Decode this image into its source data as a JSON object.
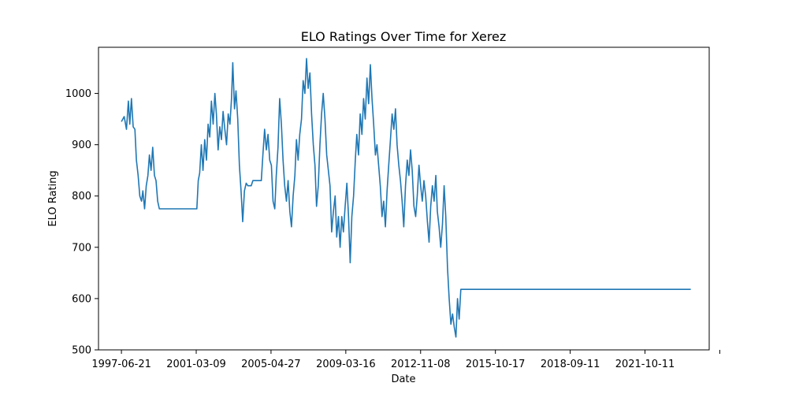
{
  "chart_data": {
    "type": "line",
    "title": "ELO Ratings Over Time for Xerez",
    "xlabel": "Date",
    "ylabel": "ELO Rating",
    "x_ticks": [
      "1997-06-21",
      "2001-03-09",
      "2005-04-27",
      "2009-03-16",
      "2012-11-08",
      "2015-10-17",
      "2018-09-11",
      "2021-10-11",
      ""
    ],
    "y_ticks": [
      "500",
      "600",
      "700",
      "800",
      "900",
      "1000"
    ],
    "ylim": [
      500,
      1090
    ],
    "xlim": [
      "1996-05-01",
      "2026-09-01"
    ],
    "grid": false,
    "legend": "none",
    "series": [
      {
        "color": "#1f77b4",
        "points": [
          [
            "1997-06-21",
            945
          ],
          [
            "1997-08-10",
            955
          ],
          [
            "1997-09-20",
            930
          ],
          [
            "1997-10-25",
            985
          ],
          [
            "1997-11-20",
            940
          ],
          [
            "1997-12-20",
            990
          ],
          [
            "1998-01-20",
            935
          ],
          [
            "1998-02-20",
            930
          ],
          [
            "1998-03-20",
            870
          ],
          [
            "1998-04-20",
            840
          ],
          [
            "1998-05-20",
            800
          ],
          [
            "1998-06-20",
            790
          ],
          [
            "1998-07-15",
            810
          ],
          [
            "1998-08-15",
            775
          ],
          [
            "1998-09-15",
            820
          ],
          [
            "1998-10-15",
            840
          ],
          [
            "1998-11-10",
            880
          ],
          [
            "1998-12-10",
            850
          ],
          [
            "1999-01-10",
            895
          ],
          [
            "1999-02-10",
            840
          ],
          [
            "1999-03-10",
            830
          ],
          [
            "1999-04-10",
            790
          ],
          [
            "1999-05-10",
            775
          ],
          [
            "2000-12-01",
            775
          ],
          [
            "2001-03-20",
            775
          ],
          [
            "2001-04-15",
            830
          ],
          [
            "2001-05-10",
            845
          ],
          [
            "2001-06-10",
            900
          ],
          [
            "2001-07-10",
            850
          ],
          [
            "2001-08-10",
            910
          ],
          [
            "2001-09-10",
            870
          ],
          [
            "2001-10-10",
            940
          ],
          [
            "2001-11-10",
            915
          ],
          [
            "2001-12-10",
            985
          ],
          [
            "2002-01-10",
            940
          ],
          [
            "2002-02-10",
            1000
          ],
          [
            "2002-03-10",
            960
          ],
          [
            "2002-04-10",
            890
          ],
          [
            "2002-05-10",
            935
          ],
          [
            "2002-06-10",
            910
          ],
          [
            "2002-07-10",
            965
          ],
          [
            "2002-08-10",
            930
          ],
          [
            "2002-09-10",
            900
          ],
          [
            "2002-10-10",
            960
          ],
          [
            "2002-11-10",
            940
          ],
          [
            "2002-12-10",
            990
          ],
          [
            "2003-01-01",
            1060
          ],
          [
            "2003-02-01",
            970
          ],
          [
            "2003-03-01",
            1005
          ],
          [
            "2003-04-01",
            950
          ],
          [
            "2003-05-01",
            860
          ],
          [
            "2003-06-01",
            810
          ],
          [
            "2003-07-01",
            750
          ],
          [
            "2003-08-01",
            810
          ],
          [
            "2003-09-01",
            825
          ],
          [
            "2003-10-01",
            820
          ],
          [
            "2003-12-01",
            820
          ],
          [
            "2004-01-01",
            830
          ],
          [
            "2004-06-01",
            830
          ],
          [
            "2004-07-01",
            880
          ],
          [
            "2004-08-01",
            930
          ],
          [
            "2004-09-01",
            890
          ],
          [
            "2004-10-01",
            920
          ],
          [
            "2004-11-01",
            870
          ],
          [
            "2004-12-01",
            860
          ],
          [
            "2005-01-01",
            790
          ],
          [
            "2005-02-01",
            775
          ],
          [
            "2005-03-01",
            840
          ],
          [
            "2005-04-01",
            895
          ],
          [
            "2005-05-01",
            990
          ],
          [
            "2005-06-01",
            940
          ],
          [
            "2005-07-01",
            870
          ],
          [
            "2005-08-01",
            820
          ],
          [
            "2005-09-01",
            790
          ],
          [
            "2005-10-01",
            830
          ],
          [
            "2005-11-01",
            770
          ],
          [
            "2005-12-01",
            740
          ],
          [
            "2006-01-01",
            800
          ],
          [
            "2006-02-01",
            840
          ],
          [
            "2006-03-01",
            910
          ],
          [
            "2006-04-01",
            870
          ],
          [
            "2006-05-01",
            920
          ],
          [
            "2006-06-01",
            950
          ],
          [
            "2006-07-01",
            1025
          ],
          [
            "2006-08-01",
            1000
          ],
          [
            "2006-09-01",
            1068
          ],
          [
            "2006-10-01",
            1010
          ],
          [
            "2006-11-01",
            1040
          ],
          [
            "2006-12-01",
            960
          ],
          [
            "2007-01-01",
            900
          ],
          [
            "2007-02-01",
            860
          ],
          [
            "2007-03-01",
            780
          ],
          [
            "2007-04-01",
            820
          ],
          [
            "2007-05-01",
            900
          ],
          [
            "2007-06-01",
            960
          ],
          [
            "2007-07-01",
            1000
          ],
          [
            "2007-08-01",
            950
          ],
          [
            "2007-09-01",
            880
          ],
          [
            "2007-10-01",
            850
          ],
          [
            "2007-11-01",
            820
          ],
          [
            "2007-12-01",
            730
          ],
          [
            "2008-01-01",
            770
          ],
          [
            "2008-02-01",
            800
          ],
          [
            "2008-03-01",
            720
          ],
          [
            "2008-04-01",
            760
          ],
          [
            "2008-05-01",
            700
          ],
          [
            "2008-06-01",
            760
          ],
          [
            "2008-07-01",
            730
          ],
          [
            "2008-08-01",
            780
          ],
          [
            "2008-09-01",
            825
          ],
          [
            "2008-10-01",
            760
          ],
          [
            "2008-11-01",
            670
          ],
          [
            "2008-12-01",
            760
          ],
          [
            "2009-01-01",
            800
          ],
          [
            "2009-02-01",
            870
          ],
          [
            "2009-03-01",
            920
          ],
          [
            "2009-04-01",
            880
          ],
          [
            "2009-05-01",
            960
          ],
          [
            "2009-06-01",
            920
          ],
          [
            "2009-07-01",
            990
          ],
          [
            "2009-08-01",
            950
          ],
          [
            "2009-09-01",
            1030
          ],
          [
            "2009-10-01",
            980
          ],
          [
            "2009-11-01",
            1056
          ],
          [
            "2009-12-01",
            990
          ],
          [
            "2010-01-01",
            940
          ],
          [
            "2010-02-01",
            880
          ],
          [
            "2010-03-01",
            900
          ],
          [
            "2010-04-01",
            860
          ],
          [
            "2010-05-01",
            820
          ],
          [
            "2010-06-01",
            760
          ],
          [
            "2010-07-01",
            790
          ],
          [
            "2010-08-01",
            740
          ],
          [
            "2010-09-01",
            810
          ],
          [
            "2010-10-01",
            860
          ],
          [
            "2010-11-01",
            910
          ],
          [
            "2010-12-01",
            960
          ],
          [
            "2011-01-01",
            930
          ],
          [
            "2011-02-01",
            970
          ],
          [
            "2011-03-01",
            900
          ],
          [
            "2011-04-01",
            860
          ],
          [
            "2011-05-01",
            830
          ],
          [
            "2011-06-01",
            790
          ],
          [
            "2011-07-01",
            740
          ],
          [
            "2011-08-01",
            820
          ],
          [
            "2011-09-01",
            870
          ],
          [
            "2011-10-01",
            840
          ],
          [
            "2011-11-01",
            890
          ],
          [
            "2011-12-01",
            850
          ],
          [
            "2012-01-01",
            780
          ],
          [
            "2012-02-01",
            760
          ],
          [
            "2012-03-01",
            800
          ],
          [
            "2012-04-01",
            860
          ],
          [
            "2012-05-01",
            820
          ],
          [
            "2012-06-01",
            790
          ],
          [
            "2012-07-01",
            830
          ],
          [
            "2012-08-01",
            800
          ],
          [
            "2012-09-01",
            750
          ],
          [
            "2012-10-01",
            710
          ],
          [
            "2012-11-01",
            780
          ],
          [
            "2012-12-01",
            820
          ],
          [
            "2013-01-01",
            790
          ],
          [
            "2013-02-01",
            840
          ],
          [
            "2013-03-01",
            770
          ],
          [
            "2013-04-01",
            740
          ],
          [
            "2013-05-01",
            700
          ],
          [
            "2013-06-01",
            745
          ],
          [
            "2013-07-01",
            820
          ],
          [
            "2013-08-01",
            760
          ],
          [
            "2013-09-01",
            660
          ],
          [
            "2013-10-01",
            600
          ],
          [
            "2013-11-01",
            550
          ],
          [
            "2013-12-01",
            570
          ],
          [
            "2014-01-01",
            545
          ],
          [
            "2014-02-01",
            525
          ],
          [
            "2014-03-01",
            600
          ],
          [
            "2014-04-01",
            560
          ],
          [
            "2014-05-01",
            618
          ],
          [
            "2014-06-01",
            618
          ],
          [
            "2025-10-01",
            618
          ]
        ]
      }
    ]
  }
}
